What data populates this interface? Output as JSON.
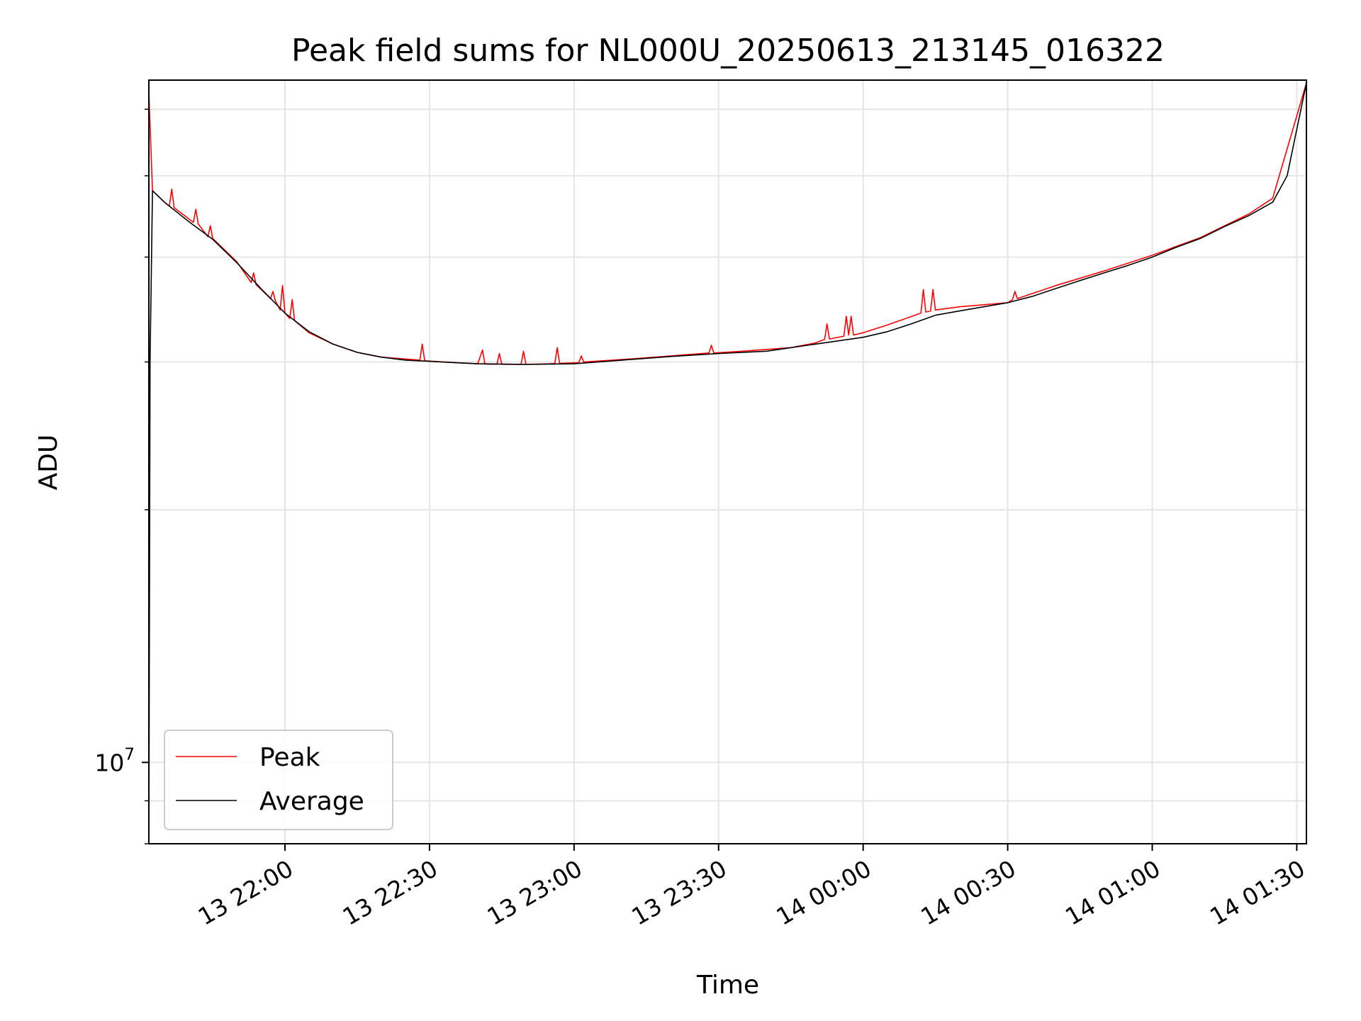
{
  "chart_data": {
    "type": "line",
    "title": "Peak field sums for NL000U_20250613_213145_016322",
    "xlabel": "Time",
    "ylabel": "ADU",
    "yscale": "log",
    "grid": true,
    "legend": "lower-left",
    "xlim": [
      "2025-06-13 21:31:45",
      "2025-06-14 01:32:00"
    ],
    "ylim": [
      8000000,
      65000000
    ],
    "x_ticks": [
      {
        "value": "2025-06-13 22:00",
        "label": "13 22:00"
      },
      {
        "value": "2025-06-13 22:30",
        "label": "13 22:30"
      },
      {
        "value": "2025-06-13 23:00",
        "label": "13 23:00"
      },
      {
        "value": "2025-06-13 23:30",
        "label": "13 23:30"
      },
      {
        "value": "2025-06-14 00:00",
        "label": "14 00:00"
      },
      {
        "value": "2025-06-14 00:30",
        "label": "14 00:30"
      },
      {
        "value": "2025-06-14 01:00",
        "label": "14 01:00"
      },
      {
        "value": "2025-06-14 01:30",
        "label": "14 01:30"
      }
    ],
    "y_major_ticks": [
      {
        "value": 10000000,
        "label_base": "10",
        "label_exp": "7"
      }
    ],
    "y_minor_ticks": [
      8000000,
      9000000,
      20000000,
      30000000,
      40000000,
      50000000,
      60000000
    ],
    "series": [
      {
        "name": "Peak",
        "color": "#ff0000",
        "x": [
          "2025-06-13 21:31:45",
          "2025-06-13 21:32:30",
          "2025-06-13 21:35",
          "2025-06-13 21:36",
          "2025-06-13 21:36:30",
          "2025-06-13 21:37",
          "2025-06-13 21:41",
          "2025-06-13 21:41:30",
          "2025-06-13 21:42",
          "2025-06-13 21:44",
          "2025-06-13 21:44:30",
          "2025-06-13 21:45",
          "2025-06-13 21:50",
          "2025-06-13 21:53",
          "2025-06-13 21:53:30",
          "2025-06-13 21:54",
          "2025-06-13 21:57",
          "2025-06-13 21:57:30",
          "2025-06-13 21:58",
          "2025-06-13 21:59",
          "2025-06-13 21:59:30",
          "2025-06-13 22:00",
          "2025-06-13 22:01",
          "2025-06-13 22:01:30",
          "2025-06-13 22:02",
          "2025-06-13 22:05",
          "2025-06-13 22:10",
          "2025-06-13 22:15",
          "2025-06-13 22:20",
          "2025-06-13 22:28",
          "2025-06-13 22:28:30",
          "2025-06-13 22:29",
          "2025-06-13 22:35",
          "2025-06-13 22:40",
          "2025-06-13 22:41",
          "2025-06-13 22:41:30",
          "2025-06-13 22:42",
          "2025-06-13 22:44",
          "2025-06-13 22:44:30",
          "2025-06-13 22:45",
          "2025-06-13 22:48",
          "2025-06-13 22:49",
          "2025-06-13 22:49:30",
          "2025-06-13 22:50",
          "2025-06-13 22:55",
          "2025-06-13 22:56",
          "2025-06-13 22:56:30",
          "2025-06-13 22:57",
          "2025-06-13 23:01",
          "2025-06-13 23:01:30",
          "2025-06-13 23:02",
          "2025-06-13 23:10",
          "2025-06-13 23:20",
          "2025-06-13 23:28",
          "2025-06-13 23:28:30",
          "2025-06-13 23:29",
          "2025-06-13 23:35",
          "2025-06-13 23:45",
          "2025-06-13 23:50",
          "2025-06-13 23:52",
          "2025-06-13 23:52:30",
          "2025-06-13 23:53",
          "2025-06-13 23:56",
          "2025-06-13 23:56:30",
          "2025-06-13 23:57",
          "2025-06-13 23:57:30",
          "2025-06-13 23:58",
          "2025-06-14 00:00",
          "2025-06-14 00:05",
          "2025-06-14 00:12",
          "2025-06-14 00:12:30",
          "2025-06-14 00:13",
          "2025-06-14 00:14",
          "2025-06-14 00:14:30",
          "2025-06-14 00:15",
          "2025-06-14 00:20",
          "2025-06-14 00:30",
          "2025-06-14 00:31",
          "2025-06-14 00:31:30",
          "2025-06-14 00:32",
          "2025-06-14 00:40",
          "2025-06-14 00:50",
          "2025-06-14 01:00",
          "2025-06-14 01:10",
          "2025-06-14 01:20",
          "2025-06-14 01:25",
          "2025-06-14 01:32"
        ],
        "y": [
          63000000,
          48000000,
          46500000,
          46000000,
          48200000,
          45800000,
          44000000,
          45600000,
          43800000,
          42300000,
          43600000,
          42100000,
          39500000,
          37300000,
          38300000,
          37100000,
          35700000,
          36400000,
          35500000,
          34600000,
          37000000,
          34300000,
          33800000,
          35600000,
          33600000,
          32500000,
          31500000,
          30800000,
          30400000,
          30150000,
          31500000,
          30100000,
          29950000,
          29850000,
          31000000,
          29830000,
          29820000,
          29820000,
          30700000,
          29810000,
          29800000,
          29800000,
          30900000,
          29810000,
          29850000,
          29870000,
          31200000,
          29880000,
          29950000,
          30500000,
          30000000,
          30200000,
          30500000,
          30750000,
          31400000,
          30750000,
          30900000,
          31200000,
          31600000,
          31900000,
          33300000,
          31950000,
          32200000,
          34000000,
          32300000,
          34000000,
          32300000,
          32500000,
          33200000,
          34300000,
          36600000,
          34400000,
          34500000,
          36600000,
          34600000,
          34900000,
          35300000,
          35600000,
          36400000,
          35700000,
          37000000,
          38500000,
          40200000,
          42200000,
          45000000,
          47000000,
          64500000
        ]
      },
      {
        "name": "Average",
        "color": "#000000",
        "x": [
          "2025-06-13 21:31:45",
          "2025-06-13 21:32:00",
          "2025-06-13 21:32:30",
          "2025-06-13 21:35",
          "2025-06-13 21:40",
          "2025-06-13 21:45",
          "2025-06-13 21:50",
          "2025-06-13 21:55",
          "2025-06-13 22:00",
          "2025-06-13 22:05",
          "2025-06-13 22:10",
          "2025-06-13 22:15",
          "2025-06-13 22:20",
          "2025-06-13 22:25",
          "2025-06-13 22:30",
          "2025-06-13 22:40",
          "2025-06-13 22:50",
          "2025-06-13 23:00",
          "2025-06-13 23:10",
          "2025-06-13 23:20",
          "2025-06-13 23:30",
          "2025-06-13 23:40",
          "2025-06-13 23:50",
          "2025-06-14 00:00",
          "2025-06-14 00:05",
          "2025-06-14 00:10",
          "2025-06-14 00:15",
          "2025-06-14 00:20",
          "2025-06-14 00:25",
          "2025-06-14 00:30",
          "2025-06-14 00:35",
          "2025-06-14 00:40",
          "2025-06-14 00:45",
          "2025-06-14 00:50",
          "2025-06-14 00:55",
          "2025-06-14 01:00",
          "2025-06-14 01:05",
          "2025-06-14 01:10",
          "2025-06-14 01:15",
          "2025-06-14 01:20",
          "2025-06-14 01:25",
          "2025-06-14 01:28",
          "2025-06-14 01:32"
        ],
        "y": [
          8000000,
          30000000,
          48000000,
          46500000,
          44100000,
          42000000,
          39400000,
          36700000,
          34300000,
          32600000,
          31500000,
          30800000,
          30400000,
          30150000,
          30050000,
          29850000,
          29800000,
          29850000,
          30150000,
          30450000,
          30700000,
          30900000,
          31500000,
          32100000,
          32600000,
          33300000,
          34100000,
          34500000,
          34900000,
          35300000,
          35900000,
          36700000,
          37500000,
          38300000,
          39100000,
          40000000,
          41100000,
          42100000,
          43500000,
          44800000,
          46500000,
          50000000,
          64500000
        ]
      }
    ]
  }
}
